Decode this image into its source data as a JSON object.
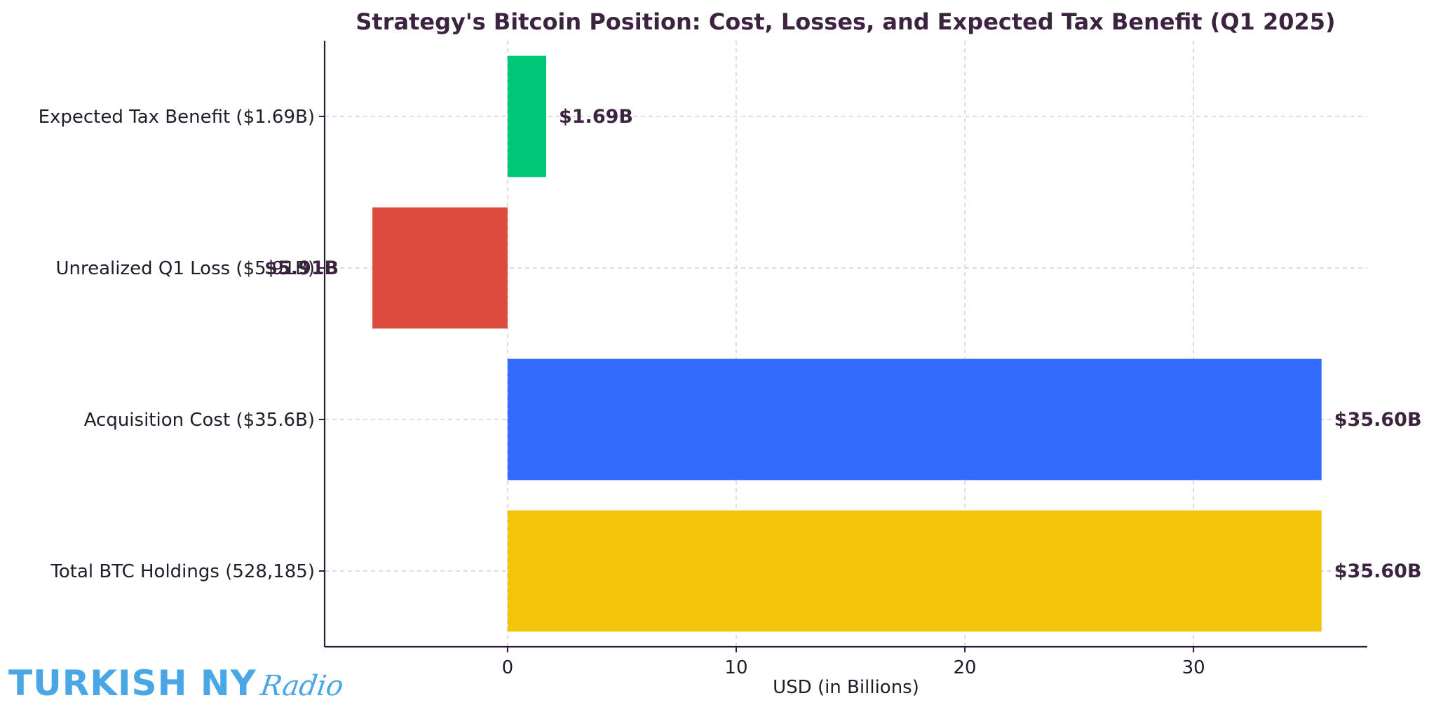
{
  "logo": {
    "brand": "TURKISH NY",
    "script": "Radio"
  },
  "chart_data": {
    "type": "bar",
    "orientation": "horizontal",
    "title": "Strategy's Bitcoin Position: Cost, Losses, and Expected Tax Benefit (Q1 2025)",
    "xlabel": "USD (in Billions)",
    "ylabel": "",
    "xlim": [
      -8,
      37.6
    ],
    "xticks": [
      0,
      10,
      20,
      30
    ],
    "grid": true,
    "categories": [
      "Expected Tax Benefit ($1.69B)",
      "Unrealized Q1 Loss ($5.91B)",
      "Acquisition Cost ($35.6B)",
      "Total BTC Holdings (528,185)"
    ],
    "values": [
      1.69,
      -5.91,
      35.6,
      35.6
    ],
    "value_labels": [
      "$1.69B",
      "$5.91B",
      "$35.60B",
      "$35.60B"
    ],
    "colors": [
      "#00c878",
      "#dd4b3e",
      "#336bff",
      "#f2c40a"
    ]
  }
}
